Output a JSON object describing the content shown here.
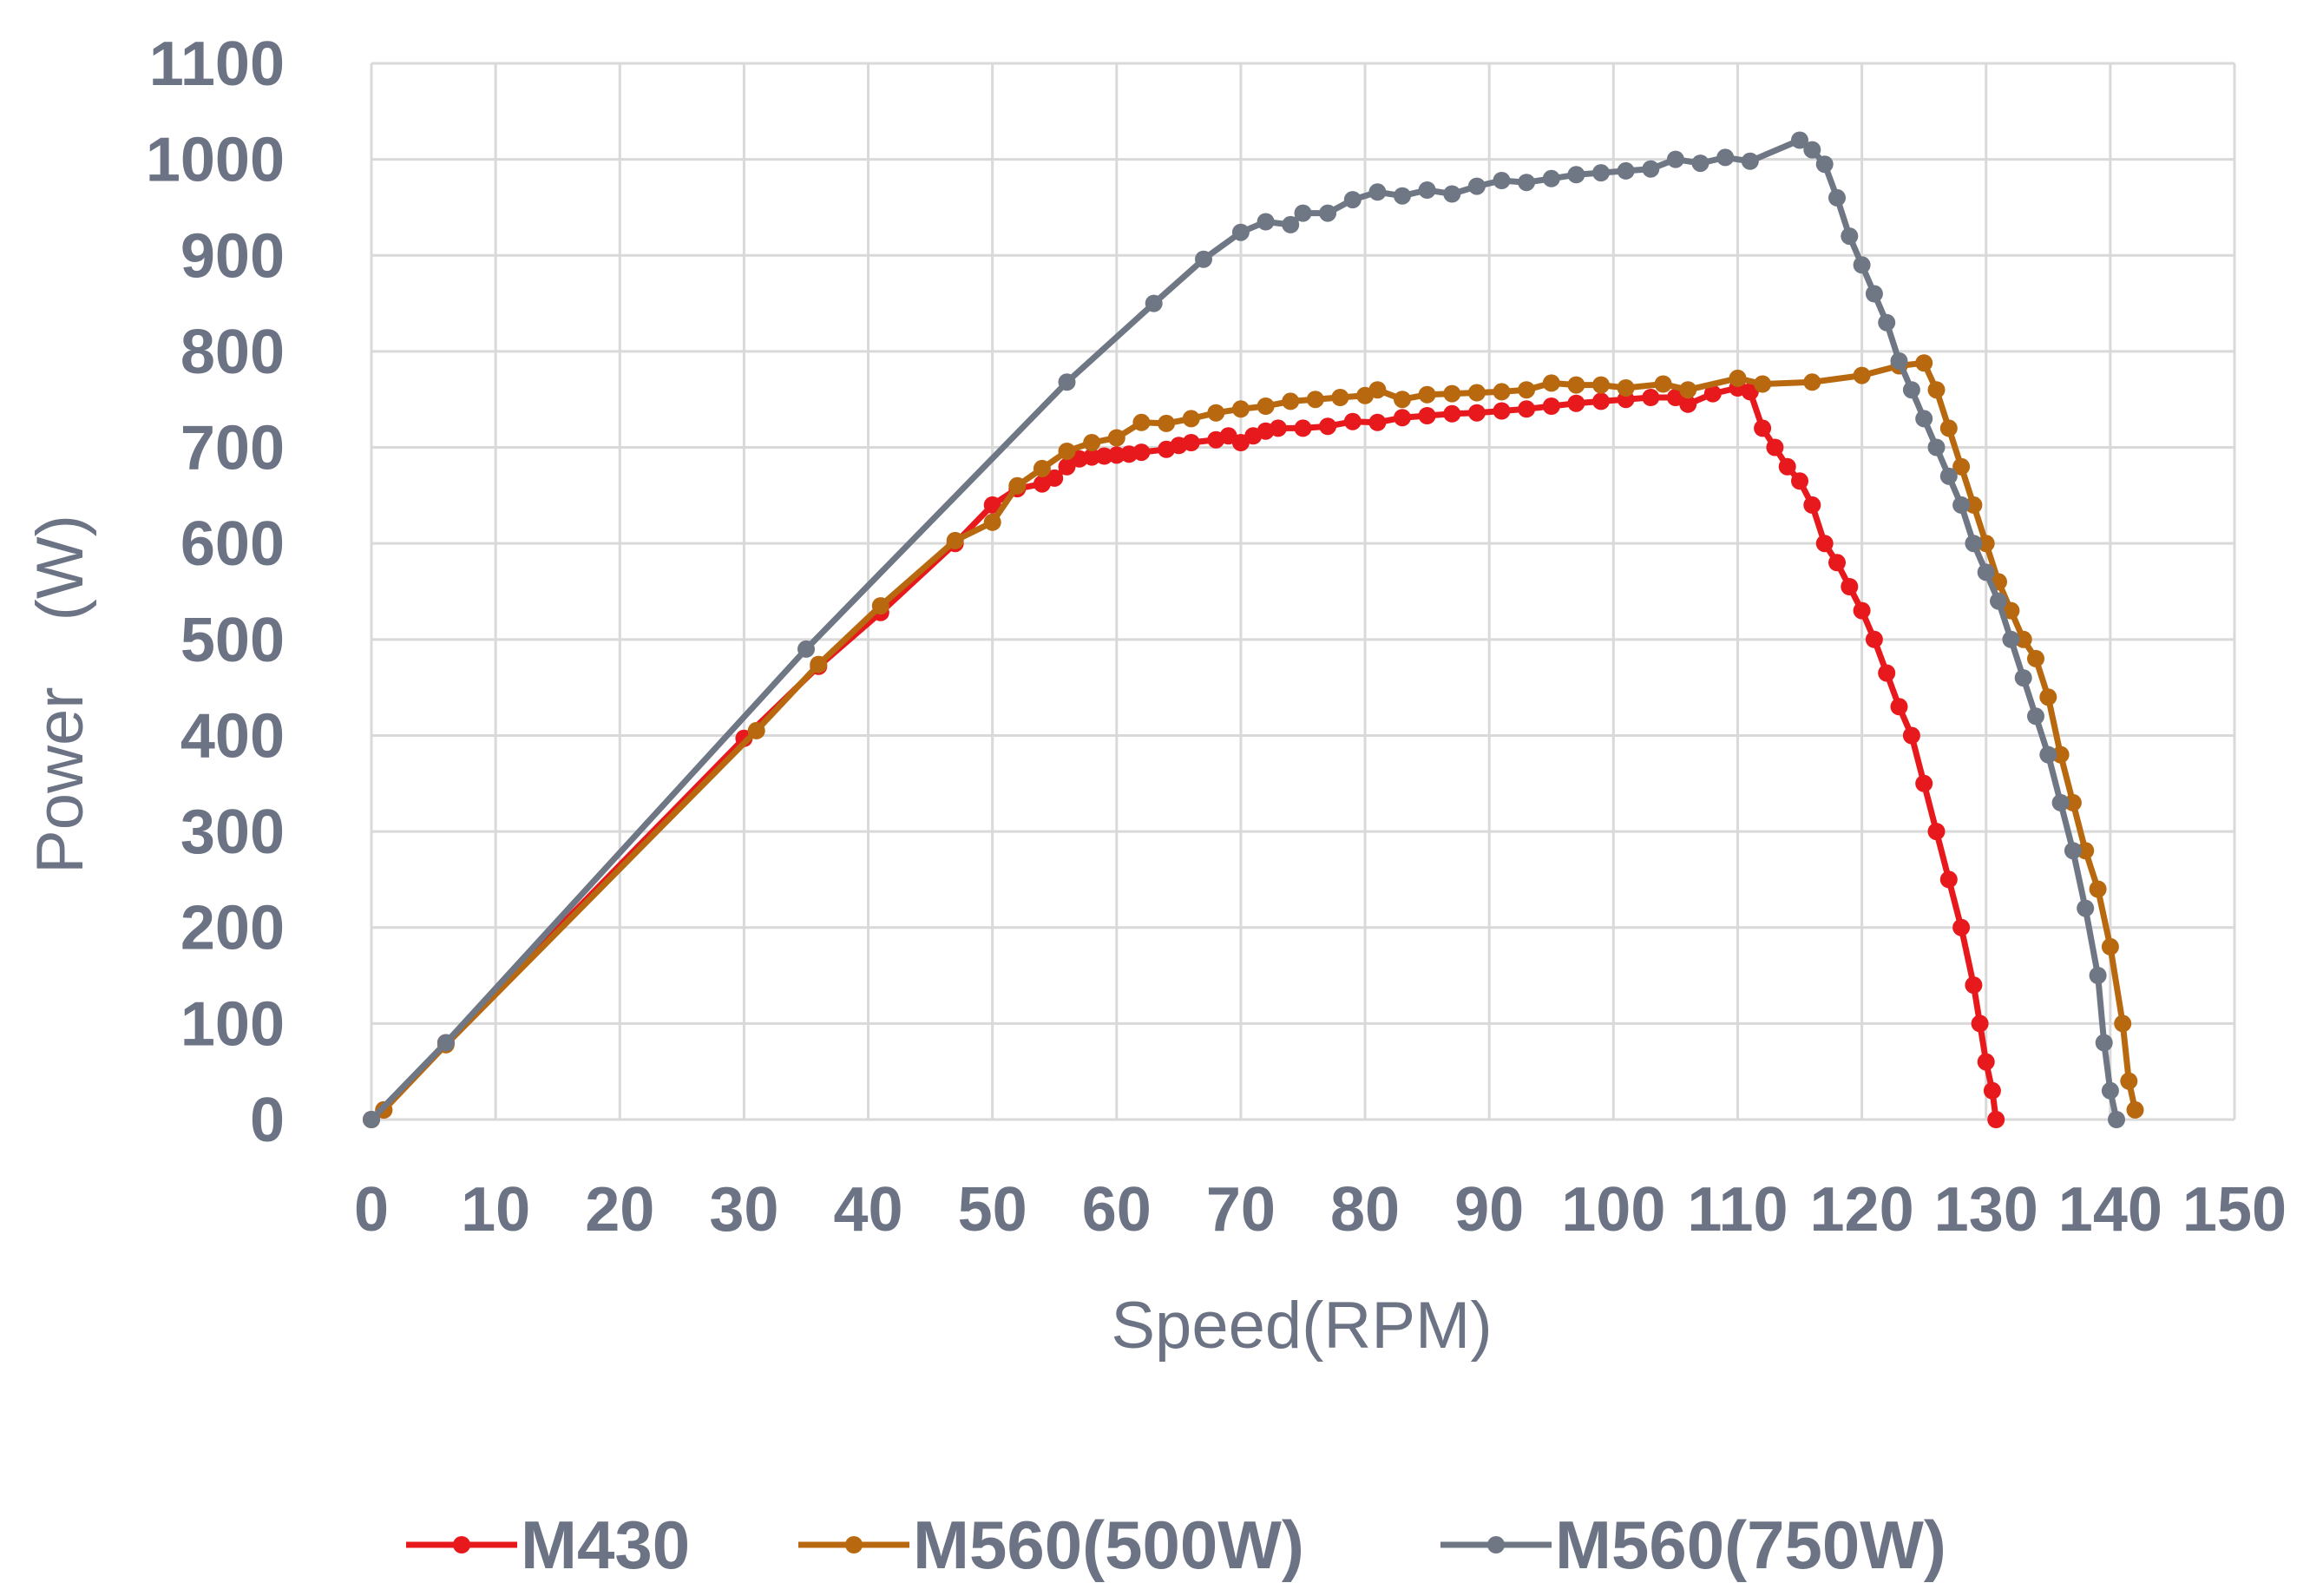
{
  "chart_data": {
    "type": "line",
    "title": "",
    "xlabel": "Speed(RPM)",
    "ylabel": "Power　(W)",
    "xlim": [
      0,
      150
    ],
    "ylim": [
      0,
      1100
    ],
    "x_ticks": [
      "0",
      "10",
      "20",
      "30",
      "40",
      "50",
      "60",
      "70",
      "80",
      "90",
      "100",
      "110",
      "120",
      "130",
      "140",
      "150"
    ],
    "y_ticks": [
      "0",
      "100",
      "200",
      "300",
      "400",
      "500",
      "600",
      "700",
      "800",
      "900",
      "1000",
      "1100"
    ],
    "grid": true,
    "legend_position": "bottom",
    "series": [
      {
        "name": "M430",
        "color": "#e8191c",
        "points": [
          [
            0,
            0
          ],
          [
            1,
            10
          ],
          [
            6,
            80
          ],
          [
            30,
            397
          ],
          [
            36,
            472
          ],
          [
            41,
            528
          ],
          [
            47,
            600
          ],
          [
            50,
            640
          ],
          [
            52,
            657
          ],
          [
            54,
            662
          ],
          [
            55,
            668
          ],
          [
            56,
            680
          ],
          [
            57,
            688
          ],
          [
            58,
            690
          ],
          [
            59,
            691
          ],
          [
            60,
            692
          ],
          [
            61,
            693
          ],
          [
            62,
            695
          ],
          [
            64,
            698
          ],
          [
            65,
            702
          ],
          [
            66,
            705
          ],
          [
            68,
            708
          ],
          [
            69,
            712
          ],
          [
            70,
            705
          ],
          [
            71,
            712
          ],
          [
            72,
            717
          ],
          [
            73,
            720
          ],
          [
            75,
            720
          ],
          [
            77,
            722
          ],
          [
            79,
            727
          ],
          [
            81,
            726
          ],
          [
            83,
            731
          ],
          [
            85,
            733
          ],
          [
            87,
            735
          ],
          [
            89,
            736
          ],
          [
            91,
            738
          ],
          [
            93,
            740
          ],
          [
            95,
            743
          ],
          [
            97,
            746
          ],
          [
            99,
            748
          ],
          [
            101,
            750
          ],
          [
            103,
            752
          ],
          [
            105,
            752
          ],
          [
            106,
            745
          ],
          [
            108,
            756
          ],
          [
            110,
            762
          ],
          [
            111,
            758
          ],
          [
            112,
            720
          ],
          [
            113,
            700
          ],
          [
            114,
            680
          ],
          [
            115,
            665
          ],
          [
            116,
            640
          ],
          [
            117,
            600
          ],
          [
            118,
            580
          ],
          [
            119,
            555
          ],
          [
            120,
            530
          ],
          [
            121,
            500
          ],
          [
            122,
            465
          ],
          [
            123,
            430
          ],
          [
            124,
            400
          ],
          [
            125,
            350
          ],
          [
            126,
            300
          ],
          [
            127,
            250
          ],
          [
            128,
            200
          ],
          [
            129,
            140
          ],
          [
            129.5,
            100
          ],
          [
            130,
            60
          ],
          [
            130.5,
            30
          ],
          [
            130.8,
            0
          ]
        ]
      },
      {
        "name": "M560(500W)",
        "color": "#b8690f",
        "points": [
          [
            0,
            0
          ],
          [
            1,
            10
          ],
          [
            6,
            78
          ],
          [
            31,
            405
          ],
          [
            36,
            474
          ],
          [
            41,
            535
          ],
          [
            47,
            603
          ],
          [
            50,
            622
          ],
          [
            52,
            660
          ],
          [
            54,
            678
          ],
          [
            56,
            696
          ],
          [
            58,
            705
          ],
          [
            60,
            710
          ],
          [
            62,
            726
          ],
          [
            64,
            725
          ],
          [
            66,
            730
          ],
          [
            68,
            736
          ],
          [
            70,
            740
          ],
          [
            72,
            743
          ],
          [
            74,
            748
          ],
          [
            76,
            750
          ],
          [
            78,
            752
          ],
          [
            80,
            754
          ],
          [
            81,
            760
          ],
          [
            83,
            750
          ],
          [
            85,
            755
          ],
          [
            87,
            756
          ],
          [
            89,
            757
          ],
          [
            91,
            758
          ],
          [
            93,
            760
          ],
          [
            95,
            767
          ],
          [
            97,
            765
          ],
          [
            99,
            765
          ],
          [
            101,
            762
          ],
          [
            104,
            766
          ],
          [
            106,
            760
          ],
          [
            110,
            772
          ],
          [
            112,
            766
          ],
          [
            116,
            768
          ],
          [
            120,
            775
          ],
          [
            123,
            785
          ],
          [
            125,
            788
          ],
          [
            126,
            760
          ],
          [
            127,
            720
          ],
          [
            128,
            680
          ],
          [
            129,
            640
          ],
          [
            130,
            600
          ],
          [
            131,
            560
          ],
          [
            132,
            530
          ],
          [
            133,
            500
          ],
          [
            134,
            480
          ],
          [
            135,
            440
          ],
          [
            136,
            380
          ],
          [
            137,
            330
          ],
          [
            138,
            280
          ],
          [
            139,
            240
          ],
          [
            140,
            180
          ],
          [
            141,
            100
          ],
          [
            141.5,
            40
          ],
          [
            142,
            10
          ]
        ]
      },
      {
        "name": "M560(750W)",
        "color": "#6f7785",
        "points": [
          [
            0,
            0
          ],
          [
            6,
            80
          ],
          [
            35,
            490
          ],
          [
            56,
            768
          ],
          [
            63,
            850
          ],
          [
            67,
            896
          ],
          [
            70,
            924
          ],
          [
            72,
            935
          ],
          [
            74,
            932
          ],
          [
            75,
            944
          ],
          [
            77,
            944
          ],
          [
            79,
            958
          ],
          [
            81,
            966
          ],
          [
            83,
            962
          ],
          [
            85,
            968
          ],
          [
            87,
            964
          ],
          [
            89,
            972
          ],
          [
            91,
            978
          ],
          [
            93,
            976
          ],
          [
            95,
            980
          ],
          [
            97,
            984
          ],
          [
            99,
            986
          ],
          [
            101,
            988
          ],
          [
            103,
            990
          ],
          [
            105,
            1000
          ],
          [
            107,
            996
          ],
          [
            109,
            1002
          ],
          [
            111,
            998
          ],
          [
            115,
            1020
          ],
          [
            116,
            1010
          ],
          [
            117,
            995
          ],
          [
            118,
            960
          ],
          [
            119,
            920
          ],
          [
            120,
            890
          ],
          [
            121,
            860
          ],
          [
            122,
            830
          ],
          [
            123,
            790
          ],
          [
            124,
            760
          ],
          [
            125,
            730
          ],
          [
            126,
            700
          ],
          [
            127,
            670
          ],
          [
            128,
            640
          ],
          [
            129,
            600
          ],
          [
            130,
            570
          ],
          [
            131,
            540
          ],
          [
            132,
            500
          ],
          [
            133,
            460
          ],
          [
            134,
            420
          ],
          [
            135,
            380
          ],
          [
            136,
            330
          ],
          [
            137,
            280
          ],
          [
            138,
            220
          ],
          [
            139,
            150
          ],
          [
            139.5,
            80
          ],
          [
            140,
            30
          ],
          [
            140.5,
            0
          ]
        ]
      }
    ]
  }
}
